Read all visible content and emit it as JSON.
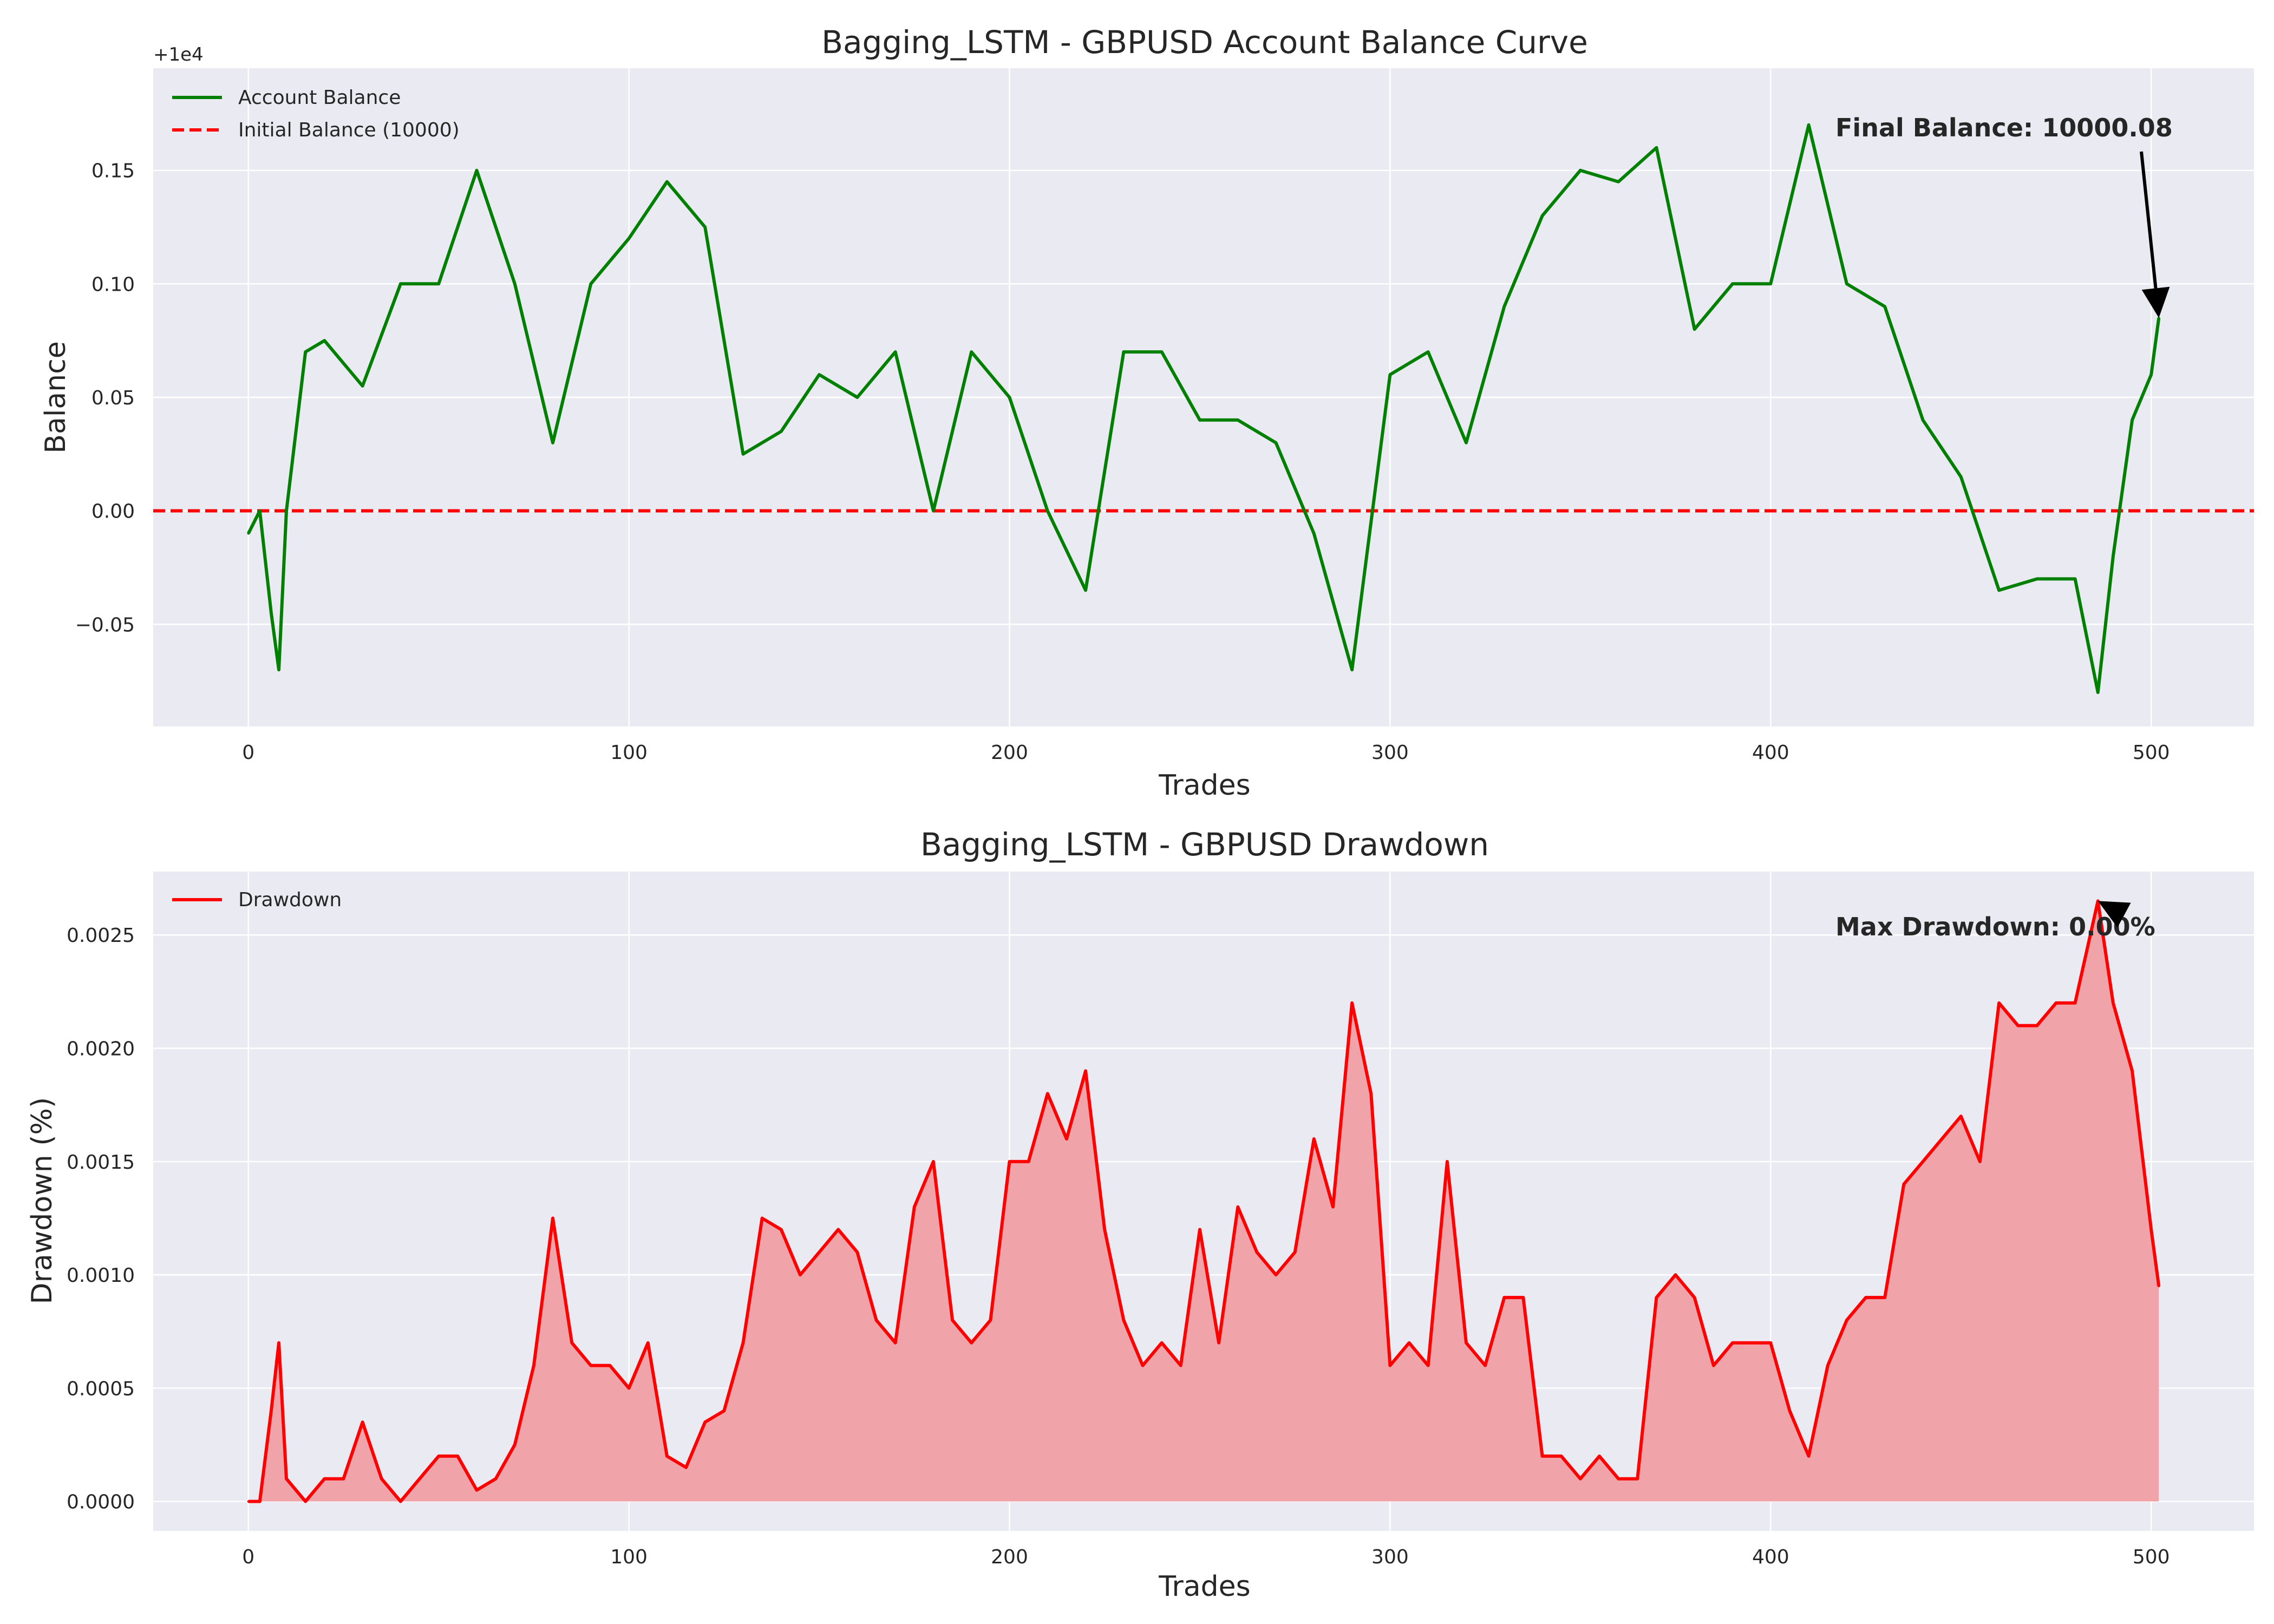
{
  "charts": [
    {
      "type": "line",
      "title": "Bagging_LSTM - GBPUSD Account Balance Curve",
      "xlabel": "Trades",
      "ylabel": "Balance",
      "offset_text": "+1e4",
      "xlim": [
        -25,
        527
      ],
      "ylim": [
        -0.095,
        0.195
      ],
      "xticks": [
        0,
        100,
        200,
        300,
        400,
        500
      ],
      "yticks": [
        -0.05,
        0.0,
        0.05,
        0.1,
        0.15
      ],
      "ytick_labels": [
        "−0.05",
        "0.00",
        "0.05",
        "0.10",
        "0.15"
      ],
      "grid": true,
      "legend_position": "top-left",
      "legend": [
        "Account Balance",
        "Initial Balance (10000)"
      ],
      "colors": {
        "balance": "#008000",
        "initial": "#ff0000",
        "arrow": "#000000"
      },
      "reference_line": {
        "y": 0.0,
        "style": "dashed",
        "label": "Initial Balance (10000)"
      },
      "annotation": {
        "text": "Final Balance: 10000.08",
        "point": [
          502,
          0.085
        ]
      },
      "series": [
        {
          "name": "Account Balance",
          "x": [
            0,
            3,
            6,
            8,
            10,
            15,
            20,
            30,
            40,
            50,
            60,
            70,
            80,
            90,
            100,
            110,
            120,
            130,
            140,
            150,
            160,
            170,
            180,
            190,
            200,
            210,
            220,
            230,
            240,
            250,
            260,
            270,
            280,
            290,
            300,
            310,
            320,
            330,
            340,
            350,
            360,
            370,
            380,
            390,
            400,
            410,
            420,
            430,
            440,
            450,
            460,
            470,
            480,
            486,
            490,
            495,
            500,
            502
          ],
          "values": [
            -0.01,
            0.0,
            -0.045,
            -0.07,
            0.0,
            0.07,
            0.075,
            0.055,
            0.1,
            0.1,
            0.15,
            0.1,
            0.03,
            0.1,
            0.12,
            0.145,
            0.125,
            0.025,
            0.035,
            0.06,
            0.05,
            0.07,
            0.0,
            0.07,
            0.05,
            0.0,
            -0.035,
            0.07,
            0.07,
            0.04,
            0.04,
            0.03,
            -0.01,
            -0.07,
            0.06,
            0.07,
            0.03,
            0.09,
            0.13,
            0.15,
            0.145,
            0.16,
            0.08,
            0.1,
            0.1,
            0.17,
            0.1,
            0.09,
            0.04,
            0.015,
            -0.035,
            -0.03,
            -0.03,
            -0.08,
            -0.02,
            0.04,
            0.06,
            0.085
          ]
        }
      ]
    },
    {
      "type": "area",
      "title": "Bagging_LSTM - GBPUSD Drawdown",
      "xlabel": "Trades",
      "ylabel": "Drawdown (%)",
      "xlim": [
        -25,
        527
      ],
      "ylim": [
        -0.00013,
        0.00278
      ],
      "xticks": [
        0,
        100,
        200,
        300,
        400,
        500
      ],
      "yticks": [
        0.0,
        0.0005,
        0.001,
        0.0015,
        0.002,
        0.0025
      ],
      "ytick_labels": [
        "0.0000",
        "0.0005",
        "0.0010",
        "0.0015",
        "0.0020",
        "0.0025"
      ],
      "grid": true,
      "legend_position": "top-left",
      "legend": [
        "Drawdown"
      ],
      "colors": {
        "line": "#ff0000",
        "fill": "#f0a4aa",
        "arrow": "#000000"
      },
      "annotation": {
        "text": "Max Drawdown: 0.00%",
        "point": [
          486,
          0.00265
        ]
      },
      "series": [
        {
          "name": "Drawdown",
          "x": [
            0,
            3,
            6,
            8,
            10,
            15,
            20,
            25,
            30,
            35,
            40,
            45,
            50,
            55,
            60,
            65,
            70,
            75,
            80,
            85,
            90,
            95,
            100,
            105,
            110,
            115,
            120,
            125,
            130,
            135,
            140,
            145,
            150,
            155,
            160,
            165,
            170,
            175,
            180,
            185,
            190,
            195,
            200,
            205,
            210,
            215,
            220,
            225,
            230,
            235,
            240,
            245,
            250,
            255,
            260,
            265,
            270,
            275,
            280,
            285,
            290,
            295,
            300,
            305,
            310,
            315,
            320,
            325,
            330,
            335,
            340,
            345,
            350,
            355,
            360,
            365,
            370,
            375,
            380,
            385,
            390,
            395,
            400,
            405,
            410,
            415,
            420,
            425,
            430,
            435,
            440,
            445,
            450,
            455,
            460,
            465,
            470,
            475,
            480,
            486,
            490,
            495,
            500,
            502
          ],
          "values": [
            0.0,
            0.0,
            0.0004,
            0.0007,
            0.0001,
            0.0,
            0.0001,
            0.0001,
            0.00035,
            0.0001,
            0.0,
            0.0001,
            0.0002,
            0.0002,
            5e-05,
            0.0001,
            0.00025,
            0.0006,
            0.00125,
            0.0007,
            0.0006,
            0.0006,
            0.0005,
            0.0007,
            0.0002,
            0.00015,
            0.00035,
            0.0004,
            0.0007,
            0.00125,
            0.0012,
            0.001,
            0.0011,
            0.0012,
            0.0011,
            0.0008,
            0.0007,
            0.0013,
            0.0015,
            0.0008,
            0.0007,
            0.0008,
            0.0015,
            0.0015,
            0.0018,
            0.0016,
            0.0019,
            0.0012,
            0.0008,
            0.0006,
            0.0007,
            0.0006,
            0.0012,
            0.0007,
            0.0013,
            0.0011,
            0.001,
            0.0011,
            0.0016,
            0.0013,
            0.0022,
            0.0018,
            0.0006,
            0.0007,
            0.0006,
            0.0015,
            0.0007,
            0.0006,
            0.0009,
            0.0009,
            0.0002,
            0.0002,
            0.0001,
            0.0002,
            0.0001,
            0.0001,
            0.0009,
            0.001,
            0.0009,
            0.0006,
            0.0007,
            0.0007,
            0.0007,
            0.0004,
            0.0002,
            0.0006,
            0.0008,
            0.0009,
            0.0009,
            0.0014,
            0.0015,
            0.0016,
            0.0017,
            0.0015,
            0.0022,
            0.0021,
            0.0021,
            0.0022,
            0.0022,
            0.00265,
            0.0022,
            0.0019,
            0.0012,
            0.00095
          ]
        }
      ]
    }
  ]
}
